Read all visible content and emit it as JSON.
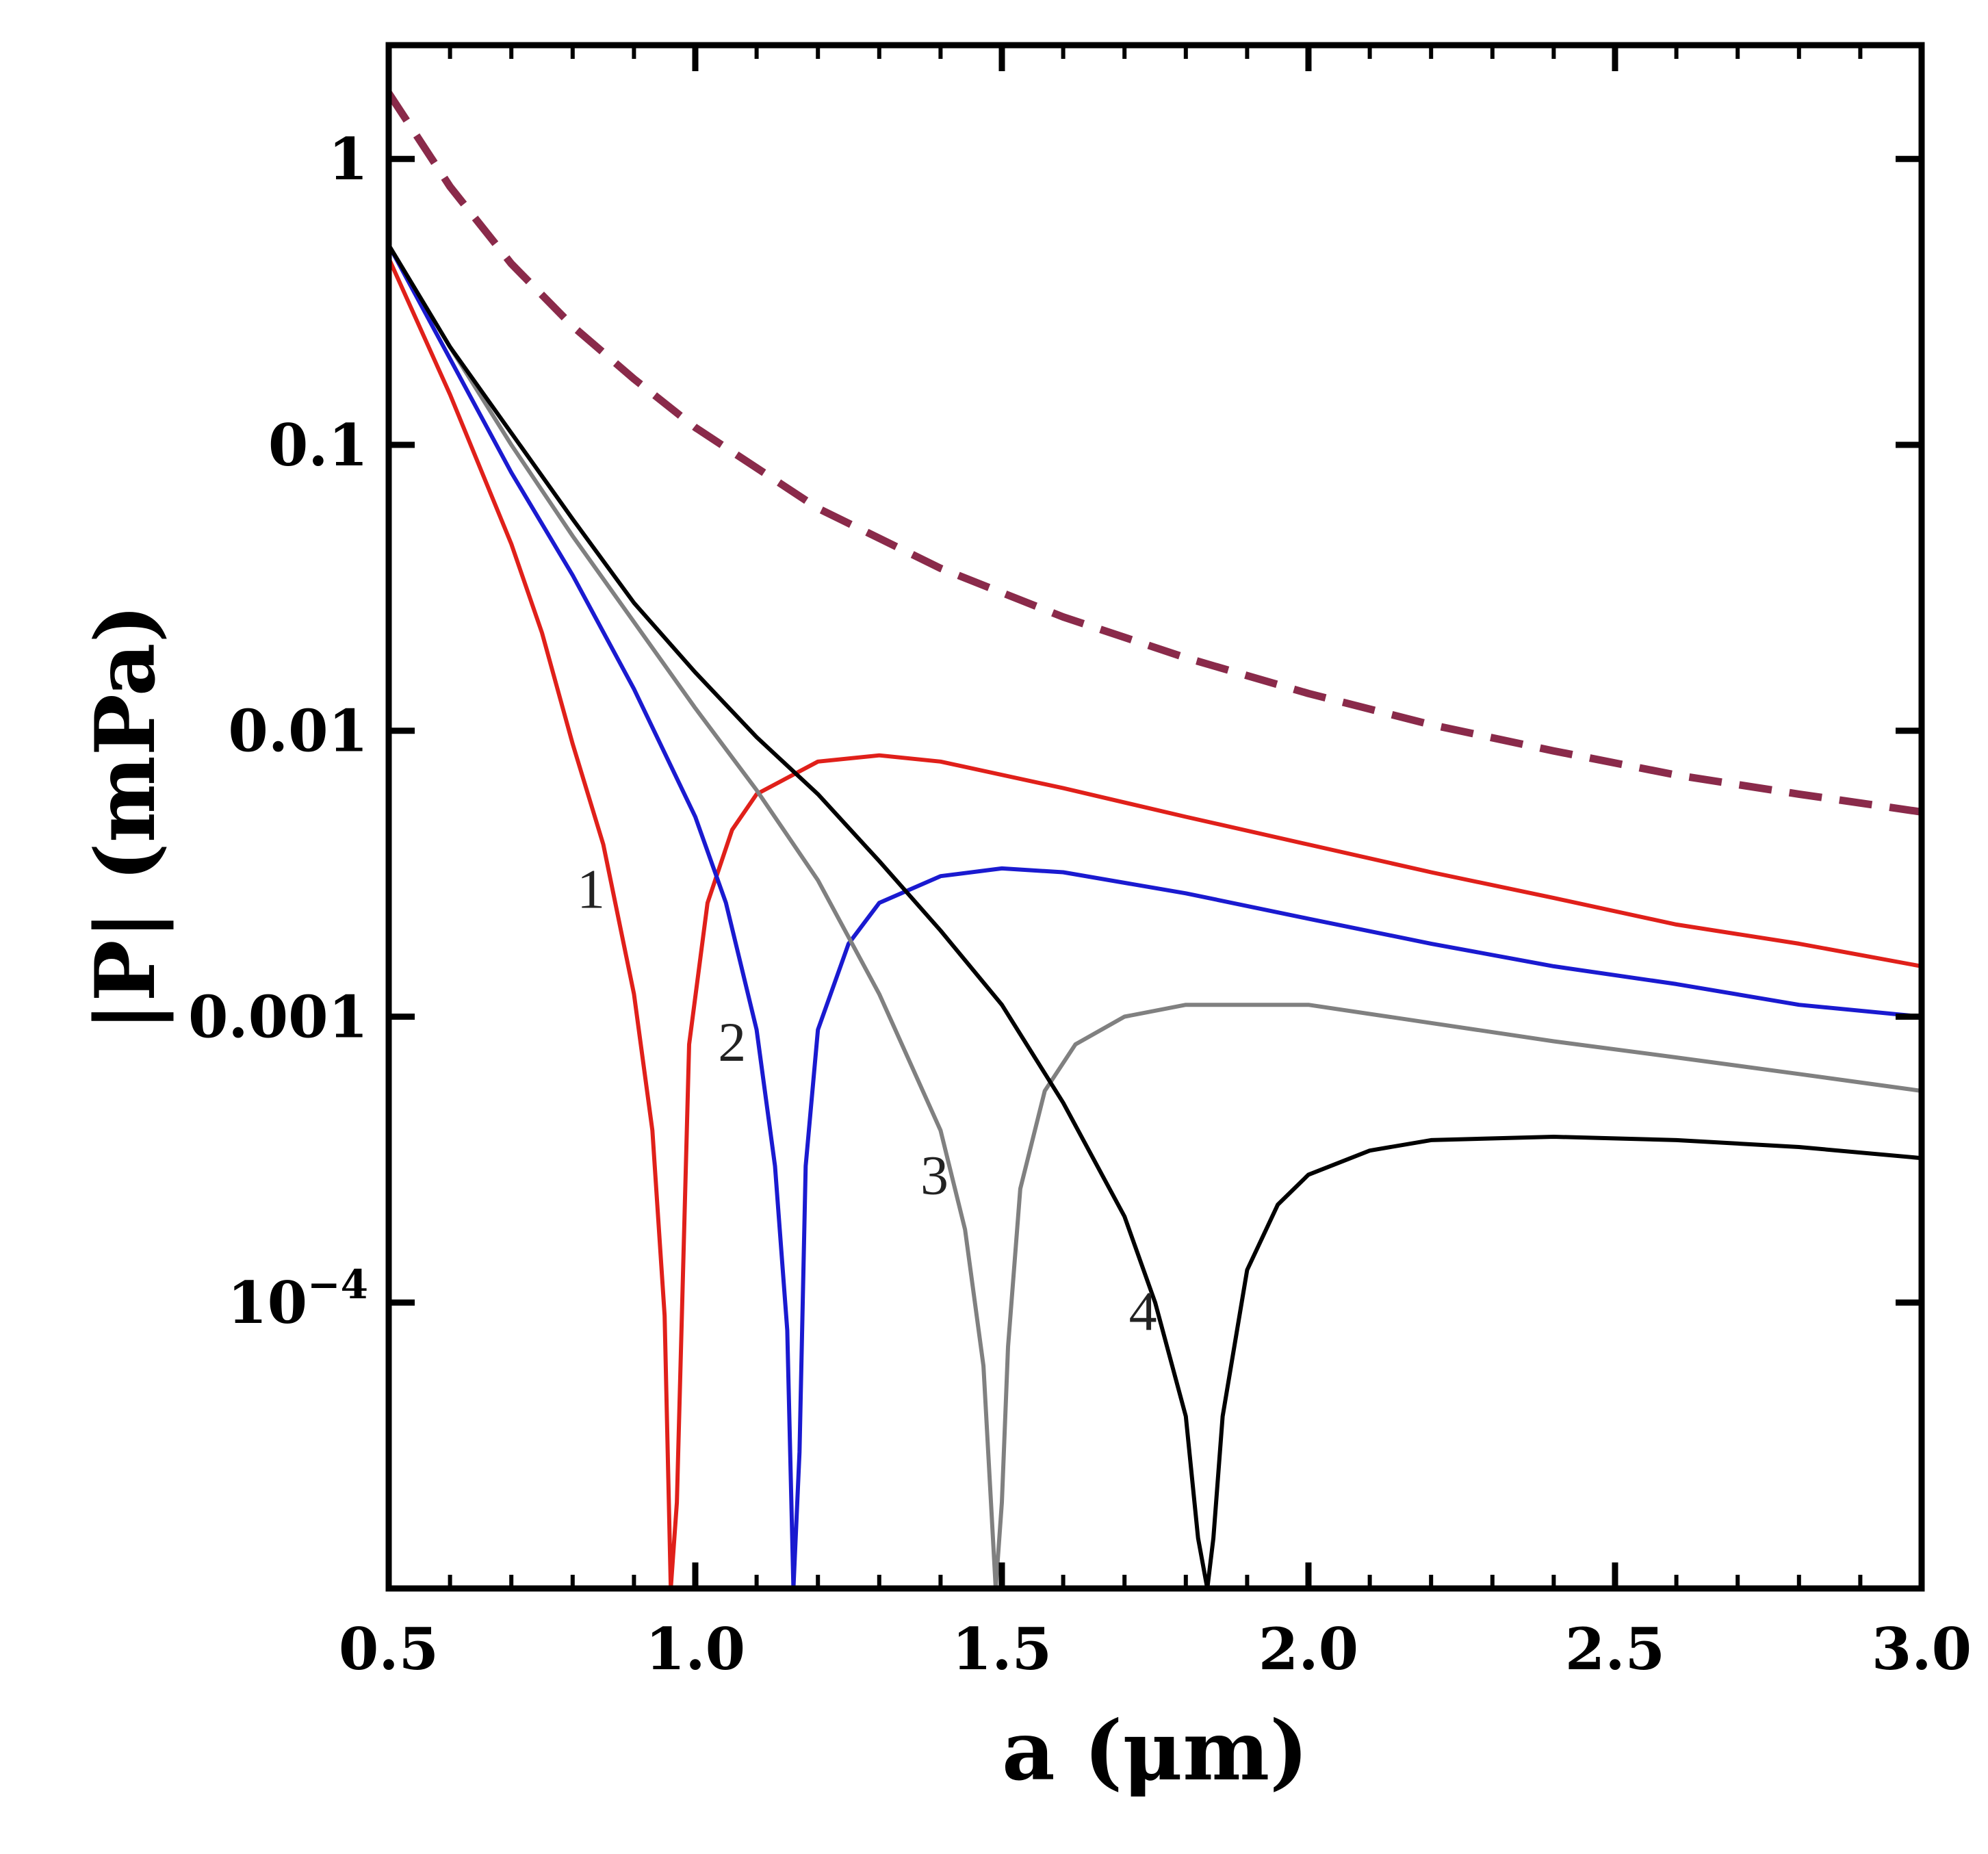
{
  "chart_data": {
    "type": "line",
    "title": "",
    "xlabel": "a (μm)",
    "ylabel": "|P| (mPa)",
    "yscale": "log",
    "xlim": [
      0.5,
      3.0
    ],
    "ylim": [
      1e-05,
      2.5
    ],
    "xticks": [
      {
        "value": 0.5,
        "label": "0.5"
      },
      {
        "value": 1.0,
        "label": "1.0"
      },
      {
        "value": 1.5,
        "label": "1.5"
      },
      {
        "value": 2.0,
        "label": "2.0"
      },
      {
        "value": 2.5,
        "label": "2.5"
      },
      {
        "value": 3.0,
        "label": "3.0"
      }
    ],
    "yticks": [
      {
        "value": 1,
        "label": "1"
      },
      {
        "value": 0.1,
        "label": "0.1"
      },
      {
        "value": 0.01,
        "label": "0.01"
      },
      {
        "value": 0.001,
        "label": "0.001"
      },
      {
        "value": 0.0001,
        "label": "10",
        "exponent": "−4"
      }
    ],
    "series": [
      {
        "name": "dashed-upper",
        "color": "#8a2a4a",
        "dashed": true,
        "x": [
          0.5,
          0.6,
          0.7,
          0.8,
          0.9,
          1.0,
          1.2,
          1.4,
          1.6,
          1.8,
          2.0,
          2.2,
          2.4,
          2.6,
          2.8,
          3.0
        ],
        "y": [
          1.7,
          0.8,
          0.43,
          0.26,
          0.17,
          0.115,
          0.06,
          0.037,
          0.025,
          0.018,
          0.0135,
          0.0105,
          0.0085,
          0.007,
          0.006,
          0.0052
        ]
      },
      {
        "name": "1",
        "color": "#e0201a",
        "dashed": false,
        "x": [
          0.5,
          0.6,
          0.7,
          0.75,
          0.8,
          0.85,
          0.9,
          0.93,
          0.95,
          0.96,
          0.97,
          0.99,
          1.02,
          1.06,
          1.1,
          1.2,
          1.3,
          1.4,
          1.6,
          1.8,
          2.0,
          2.2,
          2.4,
          2.6,
          2.8,
          3.0
        ],
        "y": [
          0.45,
          0.15,
          0.045,
          0.022,
          0.009,
          0.004,
          0.0012,
          0.0004,
          9e-05,
          1e-05,
          2e-05,
          0.0008,
          0.0025,
          0.0045,
          0.006,
          0.0078,
          0.0082,
          0.0078,
          0.0063,
          0.005,
          0.004,
          0.0032,
          0.0026,
          0.0021,
          0.0018,
          0.0015
        ]
      },
      {
        "name": "2",
        "color": "#1a1ad0",
        "dashed": false,
        "x": [
          0.5,
          0.6,
          0.7,
          0.8,
          0.9,
          1.0,
          1.05,
          1.1,
          1.13,
          1.15,
          1.16,
          1.17,
          1.18,
          1.2,
          1.25,
          1.3,
          1.4,
          1.5,
          1.6,
          1.8,
          2.0,
          2.2,
          2.4,
          2.6,
          2.8,
          3.0
        ],
        "y": [
          0.5,
          0.2,
          0.08,
          0.035,
          0.014,
          0.005,
          0.0025,
          0.0009,
          0.0003,
          8e-05,
          1e-05,
          3e-05,
          0.0003,
          0.0009,
          0.0018,
          0.0025,
          0.0031,
          0.0033,
          0.0032,
          0.0027,
          0.0022,
          0.0018,
          0.0015,
          0.0013,
          0.0011,
          0.001
        ]
      },
      {
        "name": "3",
        "color": "#808080",
        "dashed": false,
        "x": [
          0.5,
          0.6,
          0.7,
          0.8,
          0.9,
          1.0,
          1.1,
          1.2,
          1.3,
          1.4,
          1.44,
          1.47,
          1.49,
          1.5,
          1.51,
          1.53,
          1.57,
          1.62,
          1.7,
          1.8,
          1.9,
          2.0,
          2.2,
          2.4,
          2.6,
          2.8,
          3.0
        ],
        "y": [
          0.5,
          0.22,
          0.1,
          0.048,
          0.024,
          0.012,
          0.0062,
          0.003,
          0.0012,
          0.0004,
          0.00018,
          6e-05,
          1e-05,
          2e-05,
          7e-05,
          0.00025,
          0.00055,
          0.0008,
          0.001,
          0.0011,
          0.0011,
          0.0011,
          0.00095,
          0.00082,
          0.00072,
          0.00063,
          0.00055
        ]
      },
      {
        "name": "4",
        "color": "#000000",
        "dashed": false,
        "x": [
          0.5,
          0.6,
          0.7,
          0.8,
          0.9,
          1.0,
          1.1,
          1.2,
          1.3,
          1.4,
          1.5,
          1.6,
          1.7,
          1.75,
          1.8,
          1.82,
          1.835,
          1.845,
          1.86,
          1.9,
          1.95,
          2.0,
          2.1,
          2.2,
          2.4,
          2.6,
          2.8,
          3.0
        ],
        "y": [
          0.5,
          0.22,
          0.11,
          0.055,
          0.028,
          0.016,
          0.0095,
          0.006,
          0.0035,
          0.002,
          0.0011,
          0.0005,
          0.0002,
          0.0001,
          4e-05,
          1.5e-05,
          1e-05,
          1.5e-05,
          4e-05,
          0.00013,
          0.00022,
          0.00028,
          0.00034,
          0.00037,
          0.00038,
          0.00037,
          0.00035,
          0.00032
        ]
      }
    ],
    "annotations": [
      {
        "text": "1",
        "x": 0.83,
        "y": 0.0024
      },
      {
        "text": "2",
        "x": 1.06,
        "y": 0.0007
      },
      {
        "text": "3",
        "x": 1.39,
        "y": 0.00024
      },
      {
        "text": "4",
        "x": 1.73,
        "y": 8e-05
      }
    ]
  }
}
